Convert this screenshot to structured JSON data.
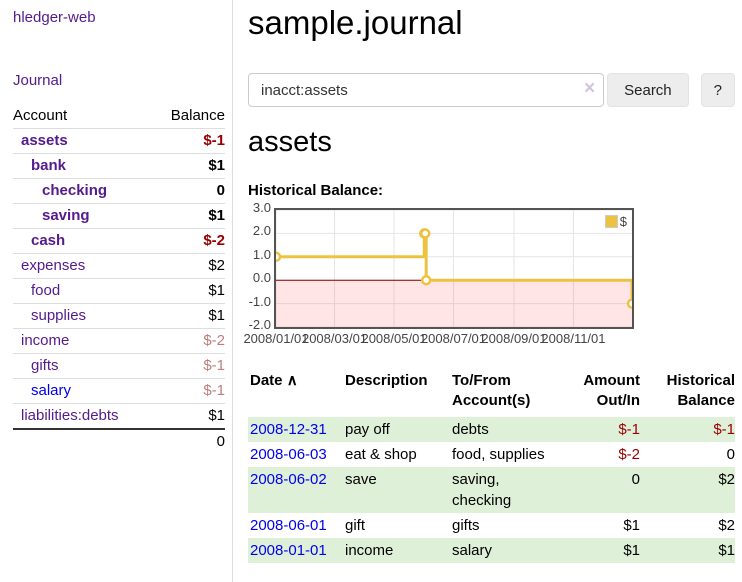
{
  "colors": {
    "link_purple": "#551a8b",
    "link_blue": "#0000ee",
    "negative_strong": "#990000",
    "negative_soft": "#c17d7d",
    "row_green": "#dff0d8",
    "series_gold": "#edc240"
  },
  "sidebar": {
    "app_title": "hledger-web",
    "nav": {
      "journal_label": "Journal"
    },
    "accounts_table": {
      "account_header": "Account",
      "balance_header": "Balance",
      "rows": [
        {
          "name": "assets",
          "indent": 1,
          "balance": "$-1",
          "bold": true,
          "negative": "strong"
        },
        {
          "name": "bank",
          "indent": 2,
          "balance": "$1",
          "bold": true
        },
        {
          "name": "checking",
          "indent": 3,
          "balance": "0",
          "bold": true
        },
        {
          "name": "saving",
          "indent": 3,
          "balance": "$1",
          "bold": true
        },
        {
          "name": "cash",
          "indent": 2,
          "balance": "$-2",
          "bold": true,
          "negative": "strong"
        },
        {
          "name": "expenses",
          "indent": 1,
          "balance": "$2"
        },
        {
          "name": "food",
          "indent": 2,
          "balance": "$1"
        },
        {
          "name": "supplies",
          "indent": 2,
          "balance": "$1"
        },
        {
          "name": "income",
          "indent": 1,
          "balance": "$-2",
          "negative": "soft"
        },
        {
          "name": "gifts",
          "indent": 2,
          "balance": "$-1",
          "negative": "soft"
        },
        {
          "name": "salary",
          "indent": 2,
          "balance": "$-1",
          "negative": "soft",
          "link_color": "blue"
        },
        {
          "name": "liabilities:debts",
          "indent": 1,
          "balance": "$1"
        }
      ],
      "total": "0"
    }
  },
  "main": {
    "title": "sample.journal",
    "search": {
      "value": "inacct:assets",
      "clear_icon": "×",
      "button_label": "Search",
      "help_label": "?"
    },
    "account_heading": "assets",
    "section_label": "Historical Balance:",
    "register": {
      "headers": {
        "date": "Date",
        "sort_icon": "∧",
        "description": "Description",
        "tofrom": "To/From Account(s)",
        "amount": "Amount Out/In",
        "balance": "Historical Balance"
      },
      "rows": [
        {
          "date": "2008-12-31",
          "description": "pay off",
          "accounts": "debts",
          "amount": "$-1",
          "amount_negative": true,
          "balance": "$-1",
          "balance_negative": true
        },
        {
          "date": "2008-06-03",
          "description": "eat & shop",
          "accounts": "food, supplies",
          "amount": "$-2",
          "amount_negative": true,
          "balance": "0",
          "balance_negative": false
        },
        {
          "date": "2008-06-02",
          "description": "save",
          "accounts": "saving, checking",
          "amount": "0",
          "amount_negative": false,
          "balance": "$2",
          "balance_negative": false
        },
        {
          "date": "2008-06-01",
          "description": "gift",
          "accounts": "gifts",
          "amount": "$1",
          "amount_negative": false,
          "balance": "$2",
          "balance_negative": false
        },
        {
          "date": "2008-01-01",
          "description": "income",
          "accounts": "salary",
          "amount": "$1",
          "amount_negative": false,
          "balance": "$1",
          "balance_negative": false
        }
      ]
    }
  },
  "chart_data": {
    "type": "line",
    "title": "Historical Balance",
    "legend_position": "top-right",
    "grid": true,
    "step": true,
    "xlim_days": [
      0,
      365
    ],
    "ylim": [
      -2,
      3
    ],
    "zero_line_color": "#8b0000",
    "negative_region_color": "rgba(255,0,0,0.10)",
    "series": [
      {
        "name": "$",
        "color": "#edc240",
        "points": [
          {
            "date": "2008-01-01",
            "day": 0,
            "value": 1
          },
          {
            "date": "2008-06-01",
            "day": 152,
            "value": 2
          },
          {
            "date": "2008-06-02",
            "day": 153,
            "value": 2
          },
          {
            "date": "2008-06-03",
            "day": 154,
            "value": 0
          },
          {
            "date": "2008-12-31",
            "day": 365,
            "value": -1
          }
        ]
      }
    ],
    "x_ticks": [
      {
        "label": "2008/01/01",
        "day": 0
      },
      {
        "label": "2008/03/01",
        "day": 60
      },
      {
        "label": "2008/05/01",
        "day": 121
      },
      {
        "label": "2008/07/01",
        "day": 182
      },
      {
        "label": "2008/09/01",
        "day": 244
      },
      {
        "label": "2008/11/01",
        "day": 305
      }
    ],
    "y_ticks": [
      {
        "label": "3.0",
        "value": 3
      },
      {
        "label": "2.0",
        "value": 2
      },
      {
        "label": "1.0",
        "value": 1
      },
      {
        "label": "0.0",
        "value": 0
      },
      {
        "label": "-1.0",
        "value": -1
      },
      {
        "label": "-2.0",
        "value": -2
      }
    ]
  }
}
